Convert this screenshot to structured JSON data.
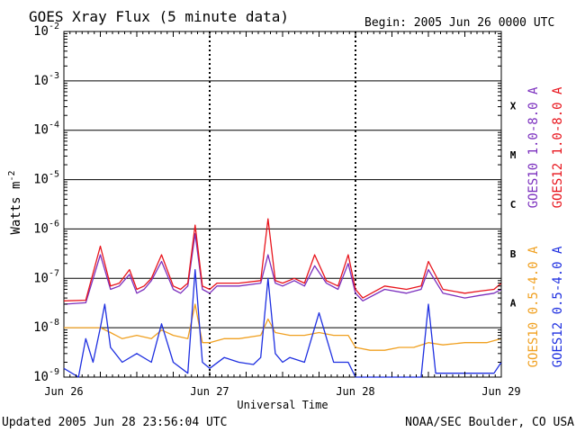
{
  "chart_data": {
    "type": "line",
    "title": "GOES Xray Flux (5 minute data)",
    "begin": "Begin:  2005 Jun 26 0000 UTC",
    "xlabel": "Universal Time",
    "ylabel": "Watts m",
    "ylabel_sup": "-2",
    "xlim": [
      0,
      3
    ],
    "x_unit": "days since 2005 Jun 26 0000 UTC",
    "x_ticks": [
      {
        "pos": 0,
        "label": "Jun 26"
      },
      {
        "pos": 1,
        "label": "Jun 27"
      },
      {
        "pos": 2,
        "label": "Jun 28"
      },
      {
        "pos": 3,
        "label": "Jun 29"
      }
    ],
    "y_scale": "log",
    "ylim": [
      1e-09,
      0.01
    ],
    "y_ticks": [
      {
        "exp": -9,
        "base": "10",
        "sup": "-9"
      },
      {
        "exp": -8,
        "base": "10",
        "sup": "-8"
      },
      {
        "exp": -7,
        "base": "10",
        "sup": "-7"
      },
      {
        "exp": -6,
        "base": "10",
        "sup": "-6"
      },
      {
        "exp": -5,
        "base": "10",
        "sup": "-5"
      },
      {
        "exp": -4,
        "base": "10",
        "sup": "-4"
      },
      {
        "exp": -3,
        "base": "10",
        "sup": "-3"
      },
      {
        "exp": -2,
        "base": "10",
        "sup": "-2"
      }
    ],
    "flare_classes": [
      {
        "label": "A",
        "exp": -8
      },
      {
        "label": "B",
        "exp": -7
      },
      {
        "label": "C",
        "exp": -6
      },
      {
        "label": "M",
        "exp": -5
      },
      {
        "label": "X",
        "exp": -4
      }
    ],
    "series": [
      {
        "name": "GOES10 1.0-8.0 A",
        "color": "#7b2fbe",
        "x": [
          0,
          0.15,
          0.25,
          0.32,
          0.38,
          0.45,
          0.5,
          0.55,
          0.6,
          0.67,
          0.75,
          0.8,
          0.85,
          0.9,
          0.95,
          1.0,
          1.05,
          1.2,
          1.35,
          1.4,
          1.45,
          1.5,
          1.58,
          1.65,
          1.72,
          1.8,
          1.88,
          1.95,
          2.0,
          2.05,
          2.2,
          2.35,
          2.45,
          2.5,
          2.6,
          2.75,
          2.85,
          2.95,
          3.0
        ],
        "y": [
          3e-08,
          3.2e-08,
          3e-07,
          6e-08,
          7e-08,
          1.2e-07,
          5e-08,
          6e-08,
          9e-08,
          2.2e-07,
          6e-08,
          5e-08,
          7e-08,
          8e-07,
          6e-08,
          5e-08,
          7e-08,
          7e-08,
          8e-08,
          3e-07,
          8e-08,
          7e-08,
          9e-08,
          7e-08,
          1.8e-07,
          8e-08,
          6e-08,
          2e-07,
          5e-08,
          3.5e-08,
          6e-08,
          5e-08,
          6e-08,
          1.5e-07,
          5e-08,
          4e-08,
          4.5e-08,
          5e-08,
          6e-08
        ]
      },
      {
        "name": "GOES12 1.0-8.0 A",
        "color": "#e8141c",
        "x": [
          0,
          0.15,
          0.25,
          0.32,
          0.38,
          0.45,
          0.5,
          0.55,
          0.6,
          0.67,
          0.75,
          0.8,
          0.85,
          0.9,
          0.95,
          1.0,
          1.05,
          1.2,
          1.35,
          1.4,
          1.45,
          1.5,
          1.58,
          1.65,
          1.72,
          1.8,
          1.88,
          1.95,
          2.0,
          2.05,
          2.2,
          2.35,
          2.45,
          2.5,
          2.6,
          2.75,
          2.85,
          2.95,
          3.0
        ],
        "y": [
          3.5e-08,
          3.6e-08,
          4.5e-07,
          7e-08,
          8e-08,
          1.5e-07,
          6e-08,
          7e-08,
          1e-07,
          3e-07,
          7e-08,
          6e-08,
          8e-08,
          1.2e-06,
          7e-08,
          6e-08,
          8e-08,
          8e-08,
          9e-08,
          1.6e-06,
          9e-08,
          8e-08,
          1e-07,
          8e-08,
          3e-07,
          9e-08,
          7e-08,
          3e-07,
          6e-08,
          4e-08,
          7e-08,
          6e-08,
          7e-08,
          2.2e-07,
          6e-08,
          5e-08,
          5.5e-08,
          6e-08,
          8e-08
        ]
      },
      {
        "name": "GOES10 0.5-4.0 A",
        "color": "#f0a020",
        "x": [
          0,
          0.15,
          0.25,
          0.32,
          0.4,
          0.5,
          0.6,
          0.67,
          0.75,
          0.85,
          0.9,
          0.95,
          1.0,
          1.1,
          1.2,
          1.35,
          1.4,
          1.45,
          1.55,
          1.65,
          1.75,
          1.85,
          1.95,
          2.0,
          2.1,
          2.2,
          2.3,
          2.4,
          2.5,
          2.6,
          2.75,
          2.9,
          3.0
        ],
        "y": [
          1e-08,
          1e-08,
          1e-08,
          8e-09,
          6e-09,
          7e-09,
          6e-09,
          9e-09,
          7e-09,
          6e-09,
          3e-08,
          5e-09,
          5e-09,
          6e-09,
          6e-09,
          7e-09,
          1.5e-08,
          8e-09,
          7e-09,
          7e-09,
          8e-09,
          7e-09,
          7e-09,
          4e-09,
          3.5e-09,
          3.5e-09,
          4e-09,
          4e-09,
          5e-09,
          4.5e-09,
          5e-09,
          5e-09,
          6e-09
        ]
      },
      {
        "name": "GOES12 0.5-4.0 A",
        "color": "#1e2fe0",
        "x": [
          0,
          0.1,
          0.15,
          0.2,
          0.25,
          0.28,
          0.32,
          0.4,
          0.5,
          0.6,
          0.67,
          0.75,
          0.85,
          0.9,
          0.95,
          1.0,
          1.1,
          1.2,
          1.3,
          1.35,
          1.4,
          1.45,
          1.5,
          1.55,
          1.65,
          1.75,
          1.85,
          1.95,
          2.0,
          2.05,
          2.2,
          2.35,
          2.45,
          2.5,
          2.55,
          2.7,
          2.85,
          2.95,
          3.0
        ],
        "y": [
          1.5e-09,
          1e-09,
          6e-09,
          2e-09,
          1e-08,
          3e-08,
          4e-09,
          2e-09,
          3e-09,
          2e-09,
          1.2e-08,
          2e-09,
          1.2e-09,
          1.5e-07,
          2e-09,
          1.5e-09,
          2.5e-09,
          2e-09,
          1.8e-09,
          2.5e-09,
          1e-07,
          3e-09,
          2e-09,
          2.5e-09,
          2e-09,
          2e-08,
          2e-09,
          2e-09,
          1e-09,
          1e-09,
          1e-09,
          1e-09,
          1e-09,
          3e-08,
          1.2e-09,
          1.2e-09,
          1.2e-09,
          1.2e-09,
          2e-09
        ]
      }
    ]
  },
  "footer": {
    "updated": "Updated 2005 Jun 28 23:56:04 UTC",
    "source": "NOAA/SEC Boulder, CO USA"
  }
}
